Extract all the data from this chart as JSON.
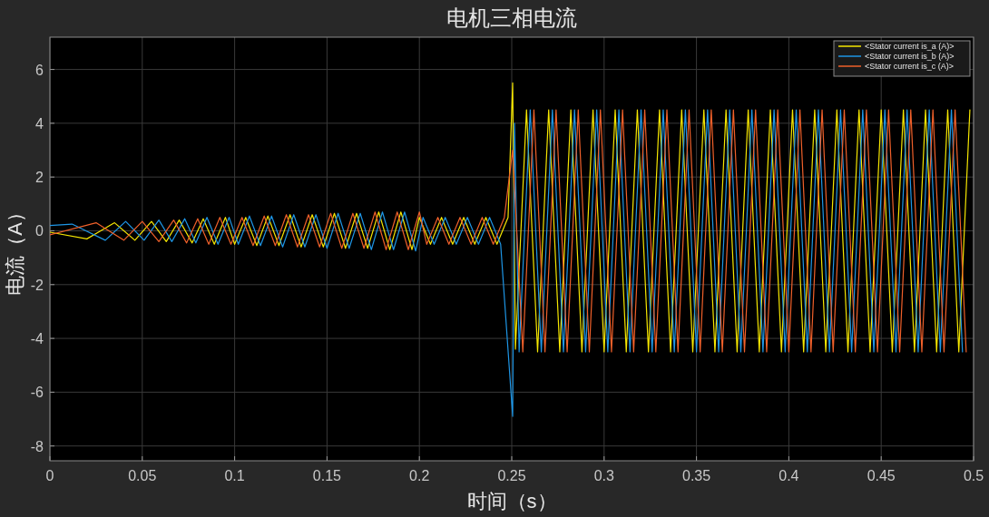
{
  "chart_data": {
    "type": "line",
    "title": "电机三相电流",
    "xlabel": "时间（s）",
    "ylabel": "电流（A）",
    "xlim": [
      0,
      0.5
    ],
    "ylim": [
      -8.55,
      7.2
    ],
    "xticks": [
      0,
      0.05,
      0.1,
      0.15,
      0.2,
      0.25,
      0.3,
      0.35,
      0.4,
      0.45,
      0.5
    ],
    "yticks": [
      -8,
      -6,
      -4,
      -2,
      0,
      2,
      4,
      6
    ],
    "grid": true,
    "legend": "top right",
    "series": [
      {
        "name": "<Stator current is_a (A)>",
        "color": "#f5e600",
        "x": [
          0,
          0.02,
          0.035,
          0.046,
          0.055,
          0.063,
          0.07,
          0.077,
          0.083,
          0.089,
          0.095,
          0.1,
          0.106,
          0.112,
          0.118,
          0.124,
          0.13,
          0.136,
          0.142,
          0.148,
          0.154,
          0.16,
          0.166,
          0.172,
          0.178,
          0.184,
          0.19,
          0.196,
          0.2,
          0.206,
          0.212,
          0.218,
          0.224,
          0.23,
          0.236,
          0.242,
          0.248,
          0.2505,
          0.252,
          0.258,
          0.264,
          0.27,
          0.276,
          0.282,
          0.288,
          0.294,
          0.3,
          0.306,
          0.312,
          0.318,
          0.324,
          0.33,
          0.336,
          0.342,
          0.348,
          0.354,
          0.36,
          0.366,
          0.372,
          0.378,
          0.384,
          0.39,
          0.396,
          0.402,
          0.408,
          0.414,
          0.42,
          0.426,
          0.432,
          0.438,
          0.444,
          0.45,
          0.456,
          0.462,
          0.468,
          0.474,
          0.48,
          0.486,
          0.492,
          0.498
        ],
        "values": [
          -0.05,
          -0.3,
          0.3,
          -0.35,
          0.35,
          -0.4,
          0.4,
          -0.45,
          0.45,
          -0.5,
          0.5,
          -0.5,
          0.5,
          -0.55,
          0.55,
          -0.55,
          0.6,
          -0.6,
          0.6,
          -0.6,
          0.65,
          -0.65,
          0.65,
          -0.65,
          0.7,
          -0.7,
          0.7,
          -0.7,
          0.5,
          -0.5,
          0.5,
          -0.5,
          0.5,
          -0.5,
          0.5,
          -0.5,
          0.5,
          5.5,
          -4.4,
          4.5,
          -4.5,
          4.5,
          -4.5,
          4.5,
          -4.5,
          4.5,
          -4.5,
          4.5,
          -4.5,
          4.5,
          -4.5,
          4.5,
          -4.5,
          4.5,
          -4.5,
          4.5,
          -4.5,
          4.5,
          -4.5,
          4.5,
          -4.5,
          4.5,
          -4.5,
          4.5,
          -4.5,
          4.5,
          -4.5,
          4.5,
          -4.5,
          4.5,
          -4.5,
          4.5,
          -4.5,
          4.5,
          -4.5,
          4.5,
          -4.5,
          4.5,
          -4.5,
          4.5
        ]
      },
      {
        "name": "<Stator current is_b (A)>",
        "color": "#1e96e6",
        "x": [
          0,
          0.012,
          0.03,
          0.041,
          0.051,
          0.059,
          0.066,
          0.073,
          0.079,
          0.085,
          0.091,
          0.097,
          0.102,
          0.108,
          0.114,
          0.12,
          0.126,
          0.132,
          0.138,
          0.144,
          0.15,
          0.156,
          0.162,
          0.168,
          0.174,
          0.18,
          0.186,
          0.192,
          0.198,
          0.202,
          0.208,
          0.214,
          0.22,
          0.226,
          0.232,
          0.238,
          0.244,
          0.2505,
          0.2515,
          0.254,
          0.26,
          0.266,
          0.272,
          0.278,
          0.284,
          0.29,
          0.296,
          0.302,
          0.308,
          0.314,
          0.32,
          0.326,
          0.332,
          0.338,
          0.344,
          0.35,
          0.356,
          0.362,
          0.368,
          0.374,
          0.38,
          0.386,
          0.392,
          0.398,
          0.404,
          0.41,
          0.416,
          0.422,
          0.428,
          0.434,
          0.44,
          0.446,
          0.452,
          0.458,
          0.464,
          0.47,
          0.476,
          0.482,
          0.488,
          0.494
        ],
        "values": [
          0.2,
          0.25,
          -0.35,
          0.35,
          -0.35,
          0.4,
          -0.4,
          0.45,
          -0.45,
          0.5,
          -0.5,
          0.5,
          -0.5,
          0.55,
          -0.55,
          0.55,
          -0.6,
          0.6,
          -0.6,
          0.6,
          -0.65,
          0.65,
          -0.65,
          0.65,
          -0.7,
          0.7,
          -0.7,
          0.7,
          -0.75,
          0.5,
          -0.5,
          0.5,
          -0.5,
          0.5,
          -0.5,
          0.5,
          -0.5,
          -6.9,
          4.0,
          -4.5,
          4.5,
          -4.5,
          4.5,
          -4.5,
          4.5,
          -4.5,
          4.5,
          -4.5,
          4.5,
          -4.5,
          4.5,
          -4.5,
          4.5,
          -4.5,
          4.5,
          -4.5,
          4.5,
          -4.5,
          4.5,
          -4.5,
          4.5,
          -4.5,
          4.5,
          -4.5,
          4.5,
          -4.5,
          4.5,
          -4.5,
          4.5,
          -4.5,
          4.5,
          -4.5,
          4.5,
          -4.5,
          4.5,
          -4.5,
          4.5,
          -4.5,
          4.5,
          -4.5
        ]
      },
      {
        "name": "<Stator current is_c (A)>",
        "color": "#f0602a",
        "x": [
          0,
          0.025,
          0.04,
          0.05,
          0.059,
          0.067,
          0.074,
          0.08,
          0.086,
          0.092,
          0.098,
          0.104,
          0.11,
          0.116,
          0.122,
          0.128,
          0.134,
          0.14,
          0.146,
          0.152,
          0.158,
          0.164,
          0.17,
          0.176,
          0.182,
          0.188,
          0.194,
          0.2,
          0.204,
          0.21,
          0.216,
          0.222,
          0.228,
          0.234,
          0.24,
          0.246,
          0.2505,
          0.256,
          0.262,
          0.268,
          0.274,
          0.28,
          0.286,
          0.292,
          0.298,
          0.304,
          0.31,
          0.316,
          0.322,
          0.328,
          0.334,
          0.34,
          0.346,
          0.352,
          0.358,
          0.364,
          0.37,
          0.376,
          0.382,
          0.388,
          0.394,
          0.4,
          0.406,
          0.412,
          0.418,
          0.424,
          0.43,
          0.436,
          0.442,
          0.448,
          0.454,
          0.46,
          0.466,
          0.472,
          0.478,
          0.484,
          0.49,
          0.496
        ],
        "values": [
          -0.15,
          0.3,
          -0.35,
          0.35,
          -0.4,
          0.4,
          -0.45,
          0.45,
          -0.5,
          0.5,
          -0.5,
          0.5,
          -0.55,
          0.55,
          -0.55,
          0.6,
          -0.6,
          0.6,
          -0.6,
          0.65,
          -0.65,
          0.65,
          -0.65,
          0.7,
          -0.7,
          0.7,
          -0.7,
          0.7,
          -0.5,
          0.5,
          -0.5,
          0.5,
          -0.5,
          0.5,
          -0.5,
          0.5,
          3.0,
          -4.5,
          4.5,
          -4.5,
          4.5,
          -4.5,
          4.5,
          -4.5,
          4.5,
          -4.5,
          4.5,
          -4.5,
          4.5,
          -4.5,
          4.5,
          -4.5,
          4.5,
          -4.5,
          4.5,
          -4.5,
          4.5,
          -4.5,
          4.5,
          -4.5,
          4.5,
          -4.5,
          4.5,
          -4.5,
          4.5,
          -4.5,
          4.5,
          -4.5,
          4.5,
          -4.5,
          4.5,
          -4.5,
          4.5,
          -4.5,
          4.5,
          -4.5,
          4.5,
          -4.5
        ]
      }
    ]
  }
}
